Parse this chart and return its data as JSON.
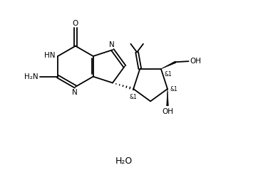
{
  "figsize": [
    3.83,
    2.46
  ],
  "dpi": 100,
  "bg_color": "#ffffff",
  "line_color": "#000000",
  "line_width": 1.3,
  "font_size": 7.5,
  "h2o_font_size": 9,
  "xlim": [
    0,
    10
  ],
  "ylim": [
    0,
    7
  ]
}
